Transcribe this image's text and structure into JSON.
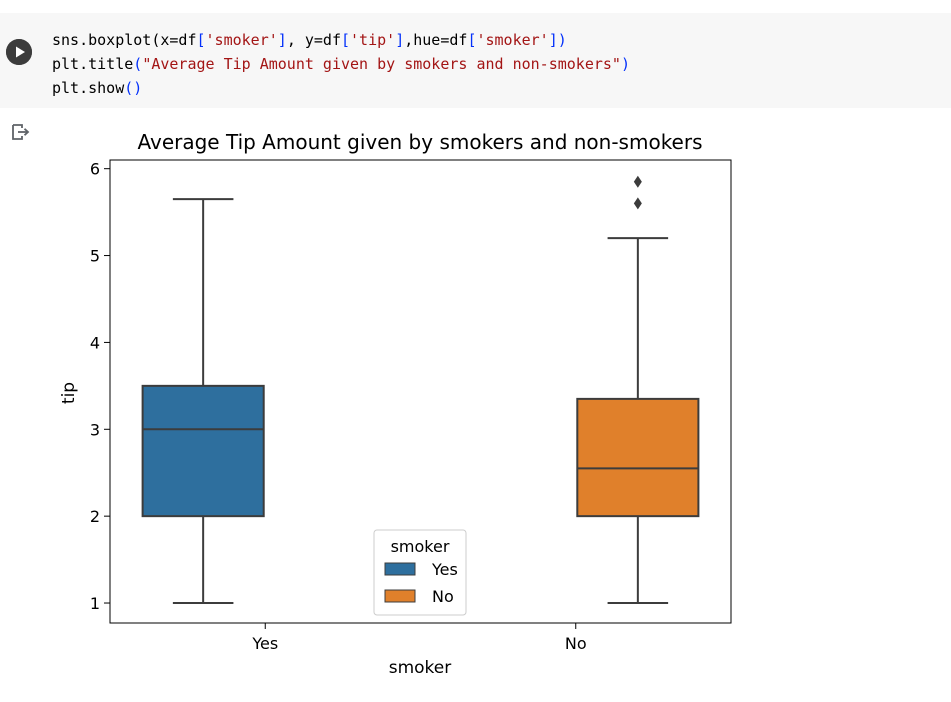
{
  "code": {
    "lines": [
      [
        {
          "t": "sns.boxplot(x=df",
          "c": "#000000"
        },
        {
          "t": "[",
          "c": "#0431fa"
        },
        {
          "t": "'smoker'",
          "c": "#a31515"
        },
        {
          "t": "]",
          "c": "#0431fa"
        },
        {
          "t": ", y=df",
          "c": "#000000"
        },
        {
          "t": "[",
          "c": "#0431fa"
        },
        {
          "t": "'tip'",
          "c": "#a31515"
        },
        {
          "t": "]",
          "c": "#0431fa"
        },
        {
          "t": ",hue=df",
          "c": "#000000"
        },
        {
          "t": "[",
          "c": "#0431fa"
        },
        {
          "t": "'smoker'",
          "c": "#a31515"
        },
        {
          "t": "]",
          "c": "#0431fa"
        },
        {
          "t": ")",
          "c": "#0431fa"
        }
      ],
      [
        {
          "t": "plt.title",
          "c": "#000000"
        },
        {
          "t": "(",
          "c": "#0431fa"
        },
        {
          "t": "\"Average Tip Amount given by smokers and non-smokers\"",
          "c": "#a31515"
        },
        {
          "t": ")",
          "c": "#0431fa"
        }
      ],
      [
        {
          "t": "plt.show",
          "c": "#000000"
        },
        {
          "t": "()",
          "c": "#0431fa"
        }
      ]
    ]
  },
  "icons": {
    "run": "play-icon",
    "output": "output-redirect-icon"
  },
  "chart_data": {
    "type": "box",
    "title": "Average Tip Amount given by smokers and non-smokers",
    "xlabel": "smoker",
    "ylabel": "tip",
    "categories": [
      "Yes",
      "No"
    ],
    "ylim": [
      0.77,
      6.1
    ],
    "yticks": [
      1,
      2,
      3,
      4,
      5,
      6
    ],
    "grid": false,
    "series": [
      {
        "name": "Yes",
        "color": "#2e6f9e",
        "whisker_low": 1.0,
        "q1": 2.0,
        "median": 3.0,
        "q3": 3.5,
        "whisker_high": 5.65,
        "outliers": []
      },
      {
        "name": "No",
        "color": "#e0802b",
        "whisker_low": 1.0,
        "q1": 2.0,
        "median": 2.55,
        "q3": 3.35,
        "whisker_high": 5.2,
        "outliers": [
          5.6,
          5.85
        ]
      }
    ],
    "legend": {
      "title": "smoker",
      "entries": [
        "Yes",
        "No"
      ],
      "placement": "lower-center"
    }
  }
}
